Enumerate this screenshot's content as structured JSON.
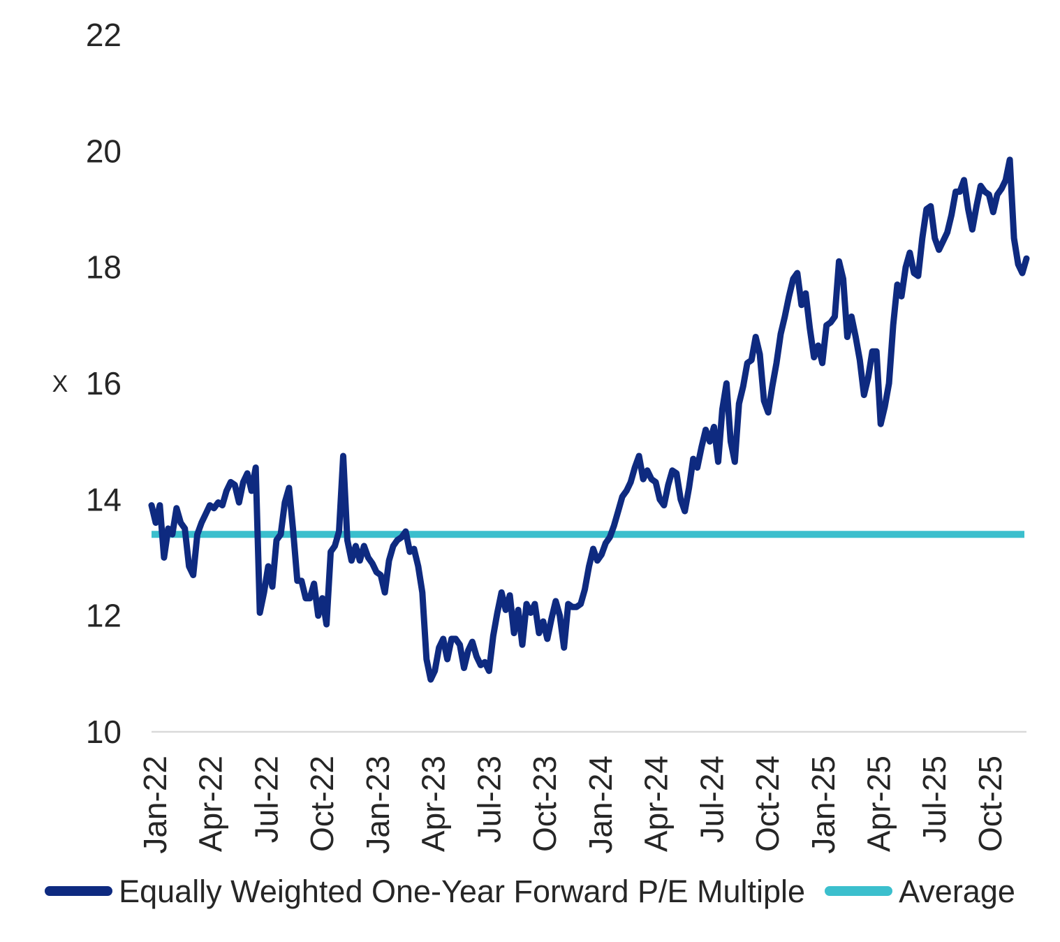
{
  "page": {
    "background": "#ffffff"
  },
  "colors": {
    "series_navy": "#0e2a80",
    "average_teal": "#3bbfcd",
    "axis_line_gray": "#d9d9d9",
    "text": "#262626"
  },
  "chart_data": {
    "type": "line",
    "title": "",
    "xlabel": "",
    "ylabel": "X",
    "ylim": [
      10,
      22
    ],
    "y_tick_values": [
      10,
      12,
      14,
      16,
      18,
      20,
      22
    ],
    "x_tick_labels": [
      "Jan-22",
      "Apr-22",
      "Jul-22",
      "Oct-22",
      "Jan-23",
      "Apr-23",
      "Jul-23",
      "Oct-23",
      "Jan-24",
      "Apr-24",
      "Jul-24",
      "Oct-24",
      "Jan-25",
      "Apr-25",
      "Jul-25",
      "Oct-25"
    ],
    "x_tick_rotation_deg": -90,
    "x_range_note": "Series points are evenly spaced in time from Jan-2022 to Nov-2025 (approximately weekly).",
    "grid": "none; single light gray baseline at y=10",
    "legend_position": "bottom",
    "series": [
      {
        "name": "Equally Weighted One-Year Forward P/E Multiple",
        "color": "#0e2a80",
        "values": [
          13.9,
          13.6,
          13.9,
          13.0,
          13.5,
          13.4,
          13.85,
          13.6,
          13.5,
          12.85,
          12.7,
          13.4,
          13.6,
          13.75,
          13.9,
          13.85,
          13.95,
          13.9,
          14.15,
          14.3,
          14.25,
          13.95,
          14.3,
          14.45,
          14.15,
          14.55,
          12.05,
          12.4,
          12.85,
          12.5,
          13.3,
          13.4,
          13.95,
          14.2,
          13.45,
          12.6,
          12.6,
          12.3,
          12.3,
          12.55,
          12.0,
          12.3,
          11.85,
          13.1,
          13.2,
          13.45,
          14.75,
          13.3,
          12.95,
          13.2,
          12.95,
          13.2,
          13.0,
          12.9,
          12.75,
          12.7,
          12.4,
          12.95,
          13.2,
          13.3,
          13.35,
          13.45,
          13.1,
          13.15,
          12.85,
          12.4,
          11.25,
          10.9,
          11.05,
          11.45,
          11.6,
          11.25,
          11.6,
          11.6,
          11.5,
          11.1,
          11.4,
          11.55,
          11.3,
          11.15,
          11.2,
          11.05,
          11.65,
          12.05,
          12.4,
          12.1,
          12.35,
          11.7,
          12.1,
          11.5,
          12.2,
          12.05,
          12.2,
          11.7,
          11.9,
          11.6,
          11.95,
          12.25,
          12.0,
          11.45,
          12.2,
          12.15,
          12.15,
          12.2,
          12.45,
          12.85,
          13.15,
          12.95,
          13.05,
          13.25,
          13.35,
          13.55,
          13.8,
          14.05,
          14.15,
          14.3,
          14.55,
          14.75,
          14.35,
          14.5,
          14.35,
          14.3,
          14.0,
          13.9,
          14.25,
          14.5,
          14.45,
          14.0,
          13.8,
          14.2,
          14.7,
          14.55,
          14.9,
          15.2,
          15.0,
          15.25,
          14.65,
          15.55,
          16.0,
          15.0,
          14.65,
          15.65,
          15.95,
          16.35,
          16.4,
          16.8,
          16.5,
          15.7,
          15.5,
          15.95,
          16.35,
          16.85,
          17.15,
          17.5,
          17.8,
          17.9,
          17.35,
          17.55,
          16.95,
          16.45,
          16.65,
          16.35,
          17.0,
          17.05,
          17.15,
          18.1,
          17.8,
          16.8,
          17.15,
          16.8,
          16.4,
          15.8,
          16.1,
          16.55,
          16.55,
          15.3,
          15.6,
          16.0,
          17.0,
          17.7,
          17.5,
          18.0,
          18.25,
          17.9,
          17.85,
          18.5,
          19.0,
          19.05,
          18.5,
          18.3,
          18.45,
          18.6,
          18.9,
          19.3,
          19.3,
          19.5,
          19.0,
          18.65,
          19.05,
          19.4,
          19.3,
          19.25,
          18.95,
          19.25,
          19.35,
          19.5,
          19.85,
          18.5,
          18.05,
          17.9,
          18.15
        ]
      },
      {
        "name": "Average",
        "color": "#3bbfcd",
        "type": "constant",
        "value": 13.4
      }
    ]
  },
  "legend": {
    "items": [
      {
        "label": "Equally Weighted One-Year Forward P/E Multiple",
        "color": "#0e2a80"
      },
      {
        "label": "Average",
        "color": "#3bbfcd"
      }
    ]
  }
}
